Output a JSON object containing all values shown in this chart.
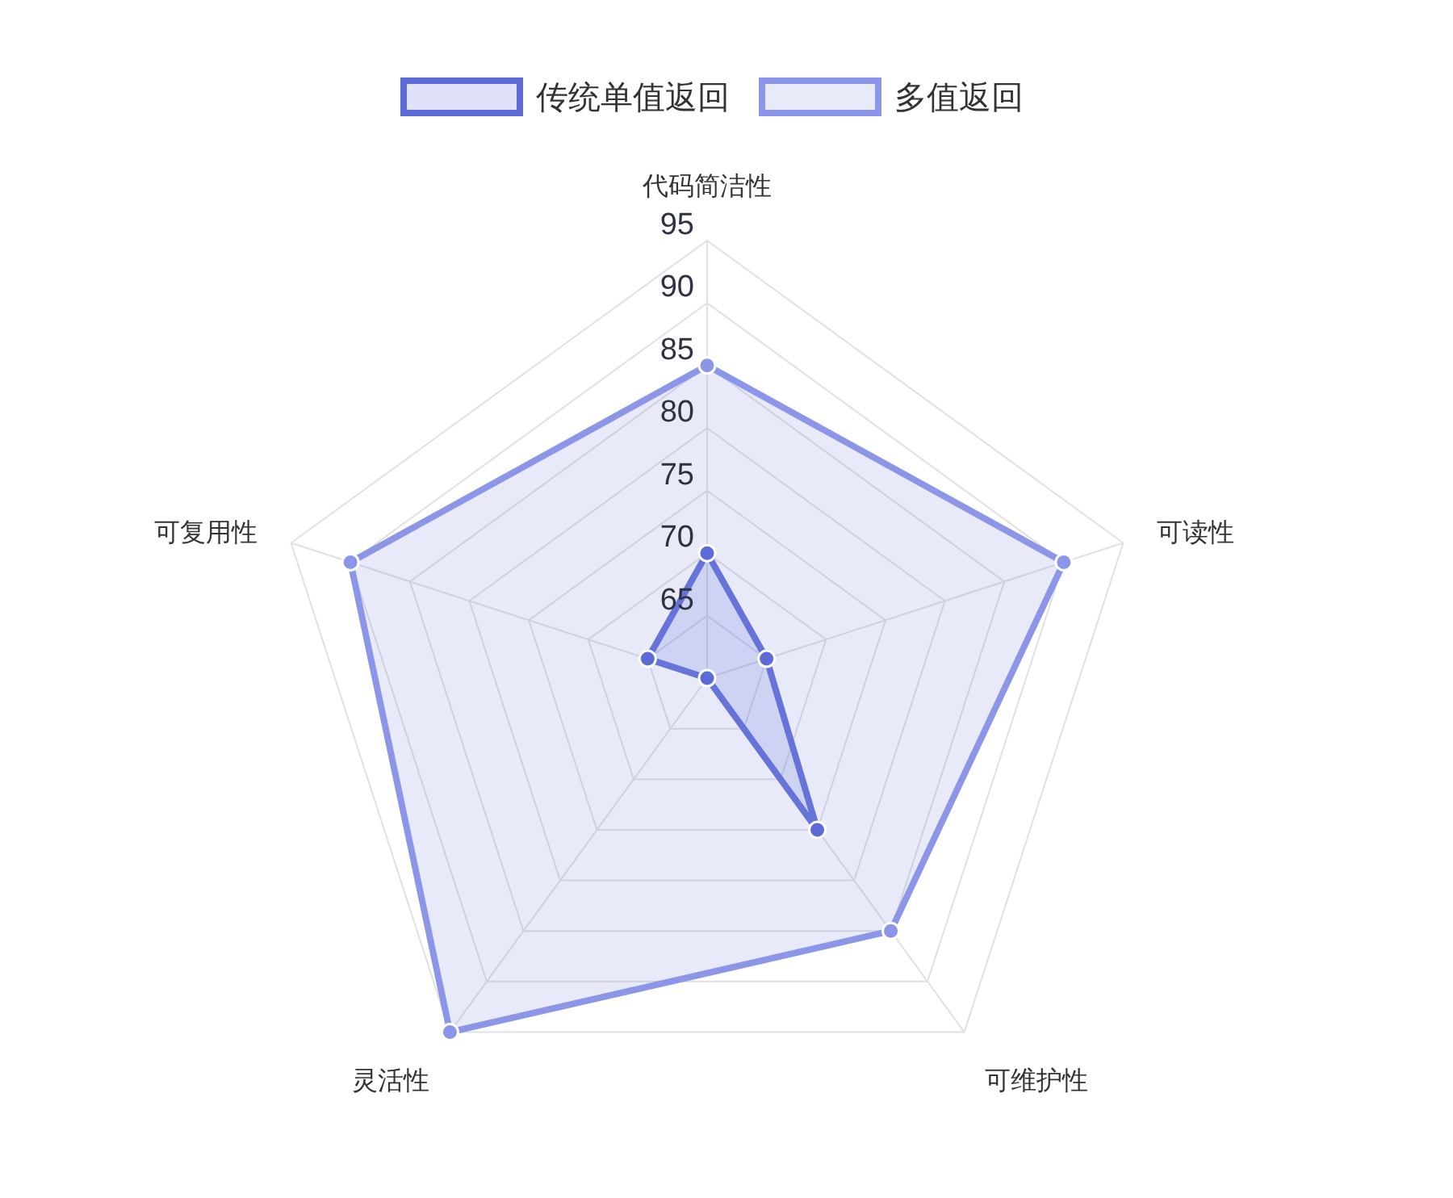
{
  "chart_data": {
    "type": "radar",
    "categories": [
      "代码简洁性",
      "可读性",
      "可维护性",
      "灵活性",
      "可复用性"
    ],
    "series": [
      {
        "name": "传统单值返回",
        "color": "#5d6bd6",
        "values": [
          70,
          65,
          75,
          60,
          65
        ]
      },
      {
        "name": "多值返回",
        "color": "#8c96e8",
        "values": [
          85,
          90,
          85,
          95,
          90
        ]
      }
    ],
    "ylim": [
      60,
      95
    ],
    "yticks": [
      65,
      70,
      75,
      80,
      85,
      90,
      95
    ],
    "grid": true,
    "legend": "top",
    "marker": "circle"
  }
}
